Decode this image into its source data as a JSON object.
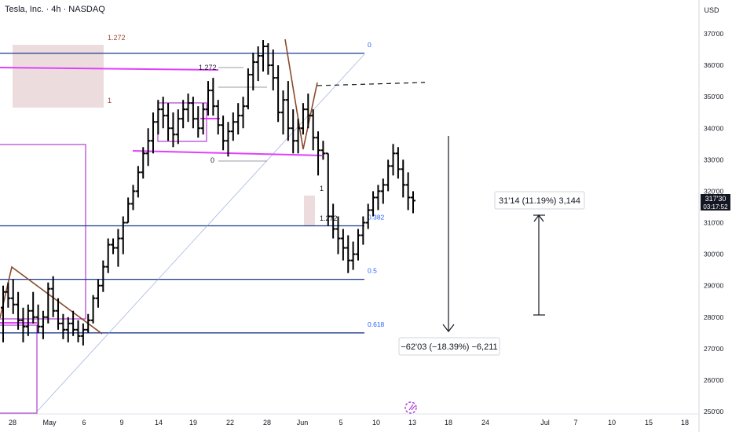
{
  "header": {
    "symbol_title": "Tesla, Inc. · 4h · NASDAQ"
  },
  "currency": "USD",
  "price_badge": {
    "price": "317'30",
    "countdown": "03:17:52"
  },
  "colors": {
    "background": "#ffffff",
    "fib_line": "#1a3a8c",
    "fib_label": "#2962ff",
    "magenta": "#e040fb",
    "purple_box": "#b13dd6",
    "zone_fill": "#ead6d8",
    "trend_brown": "#8a4a2a",
    "bar": "#000000",
    "axis_text": "#131722"
  },
  "chart_data": {
    "type": "ohlc",
    "interval": "4h",
    "y_axis": {
      "ticks": [
        250,
        260,
        270,
        280,
        290,
        300,
        310,
        320,
        330,
        340,
        350,
        360,
        370
      ],
      "tick_labels": [
        "250'00",
        "260'00",
        "270'00",
        "280'00",
        "290'00",
        "300'00",
        "310'00",
        "320'00",
        "330'00",
        "340'00",
        "350'00",
        "360'00",
        "370'00"
      ],
      "ylim": [
        249,
        378
      ]
    },
    "x_axis": {
      "tick_labels": [
        "28",
        "May",
        "6",
        "9",
        "14",
        "19",
        "22",
        "28",
        "Jun",
        "5",
        "10",
        "13",
        "18",
        "24",
        "Jul",
        "7",
        "10",
        "15",
        "18"
      ]
    },
    "bars": [
      [
        283,
        290,
        272,
        288
      ],
      [
        288,
        291,
        283,
        286
      ],
      [
        286,
        292,
        281,
        284
      ],
      [
        284,
        288,
        276,
        279
      ],
      [
        279,
        283,
        272,
        277
      ],
      [
        277,
        284,
        274,
        282
      ],
      [
        282,
        288,
        278,
        280
      ],
      [
        280,
        284,
        275,
        277
      ],
      [
        277,
        282,
        273,
        280
      ],
      [
        280,
        291,
        278,
        289
      ],
      [
        289,
        293,
        280,
        282
      ],
      [
        282,
        286,
        276,
        278
      ],
      [
        278,
        281,
        273,
        276
      ],
      [
        276,
        280,
        272,
        278
      ],
      [
        278,
        282,
        274,
        276
      ],
      [
        276,
        279,
        272,
        274
      ],
      [
        274,
        278,
        271,
        276
      ],
      [
        276,
        281,
        275,
        279
      ],
      [
        279,
        287,
        278,
        286
      ],
      [
        286,
        292,
        283,
        290
      ],
      [
        290,
        298,
        288,
        296
      ],
      [
        296,
        305,
        294,
        303
      ],
      [
        303,
        305,
        300,
        302
      ],
      [
        302,
        308,
        296,
        305
      ],
      [
        305,
        312,
        300,
        310
      ],
      [
        310,
        318,
        312,
        316
      ],
      [
        316,
        322,
        314,
        320
      ],
      [
        320,
        328,
        318,
        326
      ],
      [
        326,
        334,
        324,
        332
      ],
      [
        332,
        340,
        328,
        336
      ],
      [
        336,
        345,
        332,
        342
      ],
      [
        342,
        349,
        338,
        346
      ],
      [
        346,
        350,
        340,
        344
      ],
      [
        344,
        348,
        336,
        340
      ],
      [
        340,
        345,
        334,
        338
      ],
      [
        338,
        346,
        335,
        343
      ],
      [
        343,
        349,
        340,
        346
      ],
      [
        346,
        351,
        342,
        348
      ],
      [
        348,
        350,
        340,
        343
      ],
      [
        343,
        347,
        337,
        340
      ],
      [
        340,
        348,
        338,
        346
      ],
      [
        346,
        355,
        344,
        352
      ],
      [
        352,
        356,
        344,
        347
      ],
      [
        347,
        349,
        338,
        341
      ],
      [
        341,
        344,
        333,
        336
      ],
      [
        336,
        342,
        331,
        339
      ],
      [
        339,
        345,
        336,
        342
      ],
      [
        342,
        348,
        338,
        344
      ],
      [
        344,
        350,
        340,
        347
      ],
      [
        347,
        359,
        346,
        357
      ],
      [
        357,
        364,
        352,
        361
      ],
      [
        361,
        366,
        355,
        363
      ],
      [
        363,
        368,
        358,
        366
      ],
      [
        366,
        367,
        357,
        360
      ],
      [
        360,
        365,
        352,
        356
      ],
      [
        356,
        360,
        342,
        345
      ],
      [
        345,
        352,
        338,
        349
      ],
      [
        349,
        355,
        336,
        340
      ],
      [
        340,
        346,
        332,
        336
      ],
      [
        336,
        343,
        332,
        340
      ],
      [
        340,
        348,
        338,
        346
      ],
      [
        346,
        351,
        340,
        344
      ],
      [
        344,
        346,
        333,
        337
      ],
      [
        337,
        339,
        325,
        333
      ],
      [
        333,
        336,
        330,
        332
      ],
      [
        332,
        327,
        309,
        312
      ],
      [
        312,
        316,
        305,
        308
      ],
      [
        308,
        312,
        300,
        305
      ],
      [
        305,
        308,
        298,
        302
      ],
      [
        302,
        306,
        294,
        298
      ],
      [
        298,
        304,
        295,
        300
      ],
      [
        300,
        308,
        298,
        306
      ],
      [
        306,
        312,
        303,
        310
      ],
      [
        310,
        316,
        308,
        314
      ],
      [
        314,
        320,
        312,
        318
      ],
      [
        318,
        322,
        314,
        320
      ],
      [
        320,
        324,
        316,
        322
      ],
      [
        322,
        330,
        320,
        328
      ],
      [
        328,
        335,
        325,
        332
      ],
      [
        332,
        334,
        324,
        327
      ],
      [
        327,
        330,
        318,
        322
      ],
      [
        322,
        326,
        314,
        318
      ],
      [
        318,
        320,
        313,
        317
      ]
    ],
    "fibonacci": [
      {
        "level": "0",
        "price": 363.8
      },
      {
        "level": "0.382",
        "price": 309.0
      },
      {
        "level": "0.5",
        "price": 292.0
      },
      {
        "level": "0.618",
        "price": 275.0
      }
    ],
    "horizontal_lines": [
      {
        "price": 359.9,
        "style": "magenta"
      },
      {
        "price": 353.0,
        "style": "dashed-black"
      },
      {
        "price": 332.0,
        "style": "magenta"
      }
    ],
    "fib_extension_labels": [
      {
        "text": "1.272"
      },
      {
        "text": "1"
      },
      {
        "text": "1.272"
      },
      {
        "text": "0"
      },
      {
        "text": "1"
      },
      {
        "text": "1.272"
      }
    ],
    "annotations": {
      "down_move": "−62'03 (−18.39%) −6,211",
      "up_move": "31'14 (11.19%) 3,144"
    }
  }
}
